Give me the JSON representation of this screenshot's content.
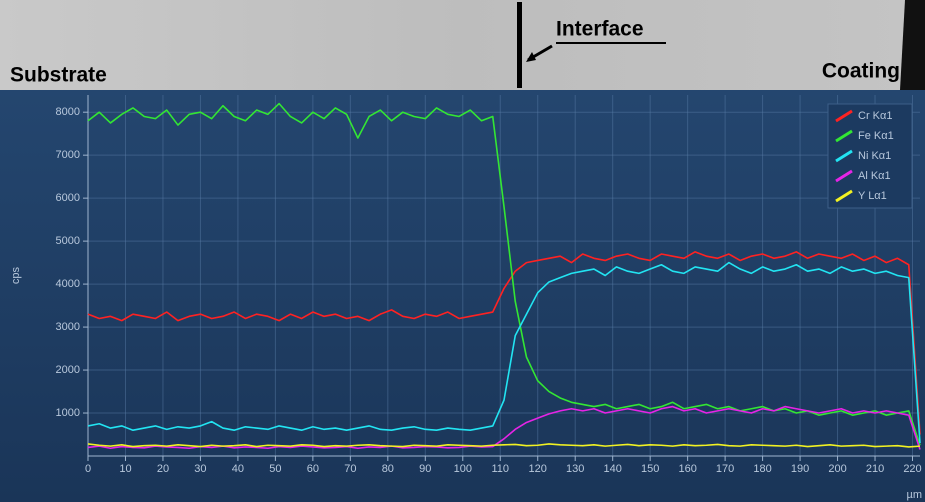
{
  "micrograph": {
    "labels": [
      "Substrate",
      "Interface",
      "Coating"
    ]
  },
  "chart_data": {
    "type": "line",
    "y_label": "cps",
    "x_label": "µm",
    "x": [
      0,
      3,
      6,
      9,
      12,
      15,
      18,
      21,
      24,
      27,
      30,
      33,
      36,
      39,
      42,
      45,
      48,
      51,
      54,
      57,
      60,
      63,
      66,
      69,
      72,
      75,
      78,
      81,
      84,
      87,
      90,
      93,
      96,
      99,
      102,
      105,
      108,
      111,
      114,
      117,
      120,
      123,
      126,
      129,
      132,
      135,
      138,
      141,
      144,
      147,
      150,
      153,
      156,
      159,
      162,
      165,
      168,
      171,
      174,
      177,
      180,
      183,
      186,
      189,
      192,
      195,
      198,
      201,
      204,
      207,
      210,
      213,
      216,
      219,
      222
    ],
    "xlim": [
      0,
      222
    ],
    "xticks": [
      0,
      10,
      20,
      30,
      40,
      50,
      60,
      70,
      80,
      90,
      100,
      110,
      120,
      130,
      140,
      150,
      160,
      170,
      180,
      190,
      200,
      210,
      220
    ],
    "ylim": [
      0,
      8400
    ],
    "yticks": [
      1000,
      2000,
      3000,
      4000,
      5000,
      6000,
      7000,
      8000
    ],
    "grid": true,
    "legend": "top-right",
    "series": [
      {
        "name": "Cr Kα1",
        "color": "#ff2222",
        "values": [
          3300,
          3200,
          3250,
          3150,
          3300,
          3250,
          3200,
          3350,
          3150,
          3250,
          3300,
          3200,
          3250,
          3350,
          3200,
          3300,
          3250,
          3150,
          3300,
          3200,
          3350,
          3250,
          3300,
          3200,
          3250,
          3150,
          3300,
          3400,
          3250,
          3200,
          3300,
          3250,
          3350,
          3200,
          3250,
          3300,
          3350,
          3900,
          4300,
          4500,
          4550,
          4600,
          4650,
          4500,
          4700,
          4600,
          4550,
          4650,
          4700,
          4600,
          4550,
          4700,
          4650,
          4600,
          4750,
          4650,
          4600,
          4700,
          4550,
          4650,
          4700,
          4600,
          4650,
          4750,
          4600,
          4700,
          4650,
          4600,
          4700,
          4550,
          4650,
          4500,
          4600,
          4450,
          500
        ]
      },
      {
        "name": "Fe Kα1",
        "color": "#33e633",
        "values": [
          7800,
          8000,
          7750,
          7950,
          8100,
          7900,
          7850,
          8050,
          7700,
          7950,
          8000,
          7850,
          8150,
          7900,
          7800,
          8050,
          7950,
          8200,
          7900,
          7750,
          8000,
          7850,
          8100,
          7950,
          7400,
          7900,
          8050,
          7800,
          8000,
          7900,
          7850,
          8100,
          7950,
          7900,
          8050,
          7800,
          7900,
          5800,
          3600,
          2300,
          1750,
          1500,
          1350,
          1250,
          1200,
          1150,
          1200,
          1100,
          1150,
          1200,
          1100,
          1150,
          1250,
          1100,
          1150,
          1200,
          1100,
          1150,
          1050,
          1100,
          1150,
          1050,
          1100,
          1000,
          1050,
          950,
          1000,
          1050,
          950,
          1000,
          1050,
          950,
          1000,
          1050,
          250
        ]
      },
      {
        "name": "Ni Kα1",
        "color": "#22e4f2",
        "values": [
          700,
          750,
          650,
          700,
          600,
          650,
          700,
          620,
          680,
          650,
          700,
          800,
          650,
          600,
          680,
          650,
          620,
          700,
          650,
          600,
          680,
          620,
          650,
          600,
          650,
          700,
          620,
          600,
          650,
          680,
          620,
          600,
          650,
          620,
          600,
          650,
          700,
          1300,
          2800,
          3300,
          3800,
          4050,
          4150,
          4250,
          4300,
          4350,
          4200,
          4400,
          4300,
          4250,
          4350,
          4450,
          4300,
          4250,
          4400,
          4350,
          4300,
          4500,
          4350,
          4250,
          4400,
          4300,
          4350,
          4450,
          4300,
          4350,
          4250,
          4400,
          4300,
          4350,
          4250,
          4300,
          4200,
          4150,
          300
        ]
      },
      {
        "name": "Al Kα1",
        "color": "#e624e6",
        "values": [
          200,
          230,
          180,
          220,
          200,
          190,
          230,
          210,
          200,
          180,
          220,
          200,
          230,
          190,
          210,
          200,
          180,
          220,
          200,
          230,
          210,
          190,
          200,
          220,
          180,
          210,
          200,
          230,
          190,
          200,
          220,
          210,
          190,
          200,
          230,
          210,
          220,
          400,
          620,
          780,
          880,
          980,
          1050,
          1100,
          1050,
          1100,
          1000,
          1050,
          1100,
          1050,
          1000,
          1100,
          1150,
          1050,
          1100,
          1000,
          1050,
          1100,
          1050,
          1000,
          1100,
          1050,
          1150,
          1100,
          1050,
          1000,
          1050,
          1100,
          1000,
          1050,
          1000,
          1050,
          1000,
          950,
          150
        ]
      },
      {
        "name": "Y Lα1",
        "color": "#f2f222",
        "values": [
          280,
          250,
          230,
          260,
          220,
          240,
          250,
          230,
          260,
          240,
          220,
          250,
          230,
          240,
          260,
          220,
          250,
          240,
          230,
          260,
          250,
          220,
          240,
          230,
          250,
          260,
          240,
          230,
          220,
          250,
          240,
          230,
          260,
          250,
          240,
          230,
          250,
          260,
          270,
          240,
          250,
          280,
          260,
          250,
          240,
          260,
          230,
          250,
          270,
          240,
          260,
          250,
          230,
          260,
          240,
          250,
          270,
          240,
          230,
          260,
          250,
          240,
          230,
          250,
          220,
          240,
          260,
          230,
          240,
          250,
          220,
          230,
          240,
          210,
          230
        ]
      }
    ]
  }
}
